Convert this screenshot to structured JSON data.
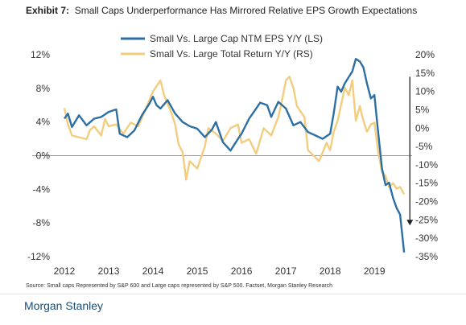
{
  "title_prefix": "Exhibit 7:",
  "title_text": "Small Caps Underperformance Has Mirrored Relative EPS Growth Expectations",
  "source": "Source: Small caps Represented by S&P 600 and Large caps represented by S&P 500. Factset, Morgan Stanley Research",
  "brand": "Morgan Stanley",
  "colors": {
    "eps": "#2b6fa5",
    "ret": "#f2cd7e",
    "zero": "#999999"
  },
  "chart_data": {
    "type": "line",
    "title": "Small Caps Underperformance Has Mirrored Relative EPS Growth Expectations",
    "legend_position": "top-center",
    "grid": false,
    "x_range": [
      2012,
      2019.85
    ],
    "x_ticks": [
      "2012",
      "2013",
      "2014",
      "2015",
      "2016",
      "2017",
      "2018",
      "2019"
    ],
    "y_left": {
      "range": [
        -12,
        12
      ],
      "ticks": [
        "12%",
        "8%",
        "4%",
        "0%",
        "-4%",
        "-8%",
        "-12%"
      ],
      "tick_values": [
        12,
        8,
        4,
        0,
        -4,
        -8,
        -12
      ]
    },
    "y_right": {
      "range": [
        -35,
        20
      ],
      "ticks": [
        "20%",
        "15%",
        "10%",
        "5%",
        "0%",
        "-5%",
        "-10%",
        "-15%",
        "-20%",
        "-25%",
        "-30%",
        "-35%"
      ],
      "tick_values": [
        20,
        15,
        10,
        5,
        0,
        -5,
        -10,
        -15,
        -20,
        -25,
        -30,
        -35
      ]
    },
    "annotation": "downward arrow at right edge (2019.8) spanning approx +14% to -26% on right axis",
    "series": [
      {
        "name": "Small Vs. Large Cap NTM EPS Y/Y (LS)",
        "axis": "left",
        "points": [
          [
            2012.0,
            4.4
          ],
          [
            2012.08,
            5.0
          ],
          [
            2012.17,
            3.4
          ],
          [
            2012.33,
            4.8
          ],
          [
            2012.5,
            3.6
          ],
          [
            2012.67,
            4.4
          ],
          [
            2012.83,
            4.6
          ],
          [
            2013.0,
            5.2
          ],
          [
            2013.17,
            5.5
          ],
          [
            2013.25,
            2.6
          ],
          [
            2013.42,
            2.2
          ],
          [
            2013.58,
            3.0
          ],
          [
            2013.75,
            4.8
          ],
          [
            2013.92,
            6.2
          ],
          [
            2014.0,
            7.0
          ],
          [
            2014.08,
            6.0
          ],
          [
            2014.17,
            5.6
          ],
          [
            2014.33,
            6.6
          ],
          [
            2014.5,
            5.0
          ],
          [
            2014.67,
            4.0
          ],
          [
            2014.83,
            3.5
          ],
          [
            2015.0,
            3.2
          ],
          [
            2015.17,
            2.2
          ],
          [
            2015.33,
            3.1
          ],
          [
            2015.42,
            4.0
          ],
          [
            2015.58,
            1.6
          ],
          [
            2015.75,
            0.6
          ],
          [
            2015.92,
            2.0
          ],
          [
            2016.0,
            2.6
          ],
          [
            2016.17,
            4.4
          ],
          [
            2016.33,
            5.6
          ],
          [
            2016.42,
            6.3
          ],
          [
            2016.58,
            6.0
          ],
          [
            2016.67,
            4.6
          ],
          [
            2016.83,
            6.4
          ],
          [
            2017.0,
            5.6
          ],
          [
            2017.17,
            3.6
          ],
          [
            2017.33,
            4.0
          ],
          [
            2017.5,
            2.8
          ],
          [
            2017.67,
            2.4
          ],
          [
            2017.83,
            2.0
          ],
          [
            2018.0,
            2.6
          ],
          [
            2018.08,
            5.0
          ],
          [
            2018.17,
            8.2
          ],
          [
            2018.25,
            7.6
          ],
          [
            2018.33,
            8.6
          ],
          [
            2018.5,
            10.0
          ],
          [
            2018.58,
            11.5
          ],
          [
            2018.67,
            11.2
          ],
          [
            2018.75,
            10.5
          ],
          [
            2018.83,
            8.6
          ],
          [
            2018.92,
            6.8
          ],
          [
            2019.0,
            7.2
          ],
          [
            2019.08,
            3.0
          ],
          [
            2019.17,
            -1.5
          ],
          [
            2019.25,
            -3.5
          ],
          [
            2019.33,
            -3.2
          ],
          [
            2019.42,
            -5.0
          ],
          [
            2019.5,
            -6.2
          ],
          [
            2019.58,
            -7.0
          ],
          [
            2019.67,
            -11.5
          ]
        ]
      },
      {
        "name": "Small Vs. Large Total Return Y/Y (RS)",
        "axis": "right",
        "points": [
          [
            2012.0,
            5.5
          ],
          [
            2012.08,
            1.0
          ],
          [
            2012.17,
            -2.0
          ],
          [
            2012.33,
            -2.5
          ],
          [
            2012.5,
            -3.0
          ],
          [
            2012.58,
            -0.5
          ],
          [
            2012.67,
            0.5
          ],
          [
            2012.83,
            -2.0
          ],
          [
            2012.92,
            2.5
          ],
          [
            2013.0,
            0.5
          ],
          [
            2013.17,
            1.0
          ],
          [
            2013.33,
            -1.5
          ],
          [
            2013.5,
            1.5
          ],
          [
            2013.67,
            0.5
          ],
          [
            2013.83,
            5.0
          ],
          [
            2014.0,
            10.0
          ],
          [
            2014.17,
            13.0
          ],
          [
            2014.25,
            9.0
          ],
          [
            2014.42,
            4.0
          ],
          [
            2014.5,
            1.0
          ],
          [
            2014.58,
            -4.5
          ],
          [
            2014.67,
            -6.5
          ],
          [
            2014.75,
            -14.0
          ],
          [
            2014.83,
            -9.0
          ],
          [
            2015.0,
            -11.0
          ],
          [
            2015.17,
            -5.0
          ],
          [
            2015.25,
            0.0
          ],
          [
            2015.42,
            -1.5
          ],
          [
            2015.58,
            -3.5
          ],
          [
            2015.75,
            0.0
          ],
          [
            2015.92,
            1.0
          ],
          [
            2016.0,
            -4.0
          ],
          [
            2016.17,
            -3.0
          ],
          [
            2016.33,
            -7.0
          ],
          [
            2016.5,
            0.0
          ],
          [
            2016.67,
            -2.0
          ],
          [
            2016.83,
            3.0
          ],
          [
            2016.92,
            8.0
          ],
          [
            2017.0,
            13.0
          ],
          [
            2017.08,
            14.0
          ],
          [
            2017.17,
            11.0
          ],
          [
            2017.25,
            6.0
          ],
          [
            2017.42,
            3.0
          ],
          [
            2017.5,
            -6.0
          ],
          [
            2017.67,
            -8.0
          ],
          [
            2017.75,
            -9.0
          ],
          [
            2017.92,
            -4.0
          ],
          [
            2018.0,
            -6.0
          ],
          [
            2018.08,
            -1.0
          ],
          [
            2018.17,
            2.0
          ],
          [
            2018.33,
            11.0
          ],
          [
            2018.42,
            9.0
          ],
          [
            2018.5,
            13.0
          ],
          [
            2018.58,
            2.0
          ],
          [
            2018.67,
            6.0
          ],
          [
            2018.75,
            2.0
          ],
          [
            2018.83,
            -1.0
          ],
          [
            2018.92,
            1.0
          ],
          [
            2019.0,
            1.5
          ],
          [
            2019.08,
            -6.0
          ],
          [
            2019.17,
            -12.0
          ],
          [
            2019.25,
            -13.0
          ],
          [
            2019.33,
            -16.0
          ],
          [
            2019.42,
            -15.0
          ],
          [
            2019.5,
            -16.5
          ],
          [
            2019.58,
            -16.0
          ],
          [
            2019.67,
            -18.0
          ]
        ]
      }
    ]
  }
}
